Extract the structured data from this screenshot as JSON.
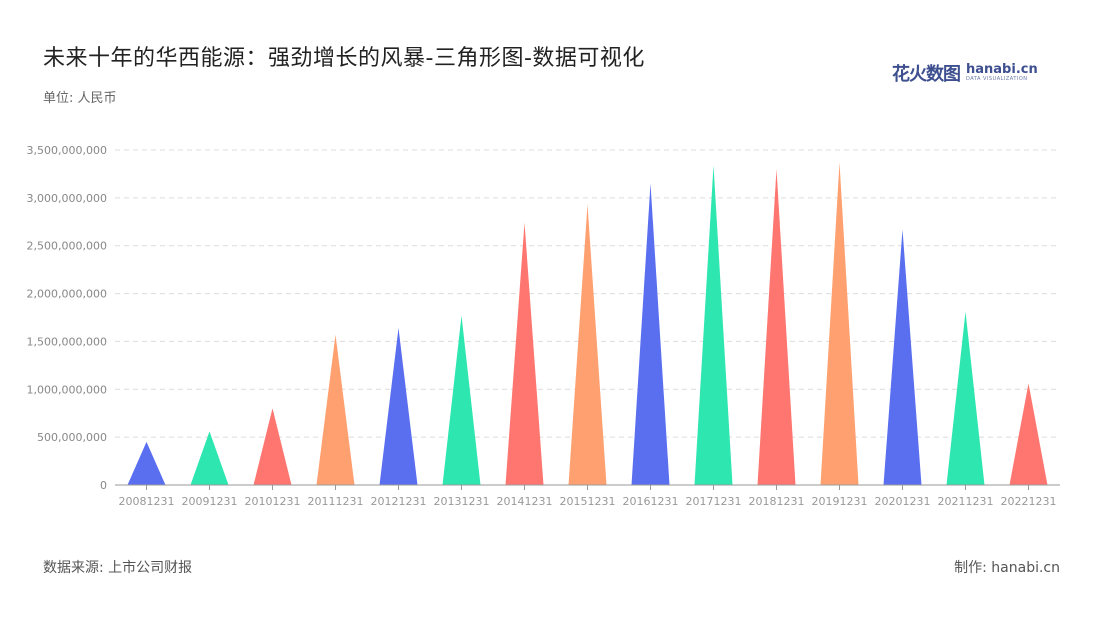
{
  "header": {
    "title": "未来十年的华西能源：强劲增长的风暴-三角形图-数据可视化",
    "unit_label": "单位: 人民币"
  },
  "logo": {
    "cn_text": "花火数图",
    "en_text": "hanabi.cn",
    "en_sub": "DATA VISUALIZATION"
  },
  "footer": {
    "source": "数据来源: 上市公司财报",
    "credit": "制作: hanabi.cn"
  },
  "chart_data": {
    "type": "bar",
    "mark_shape": "triangle",
    "categories": [
      "20081231",
      "20091231",
      "20101231",
      "20111231",
      "20121231",
      "20131231",
      "20141231",
      "20151231",
      "20161231",
      "20171231",
      "20181231",
      "20191231",
      "20201231",
      "20211231",
      "20221231"
    ],
    "values": [
      450000000,
      560000000,
      800000000,
      1570000000,
      1640000000,
      1770000000,
      2740000000,
      2930000000,
      3150000000,
      3340000000,
      3300000000,
      3370000000,
      2670000000,
      1810000000,
      1060000000
    ],
    "ylim": [
      0,
      3500000000
    ],
    "yticks": [
      0,
      500000000,
      1000000000,
      1500000000,
      2000000000,
      2500000000,
      3000000000,
      3500000000
    ],
    "ytick_labels": [
      "0",
      "500,000,000",
      "1,000,000,000",
      "1,500,000,000",
      "2,000,000,000",
      "2,500,000,000",
      "3,000,000,000",
      "3,500,000,000"
    ],
    "colors": [
      "#5a6ff0",
      "#2ee6b0",
      "#ff7670",
      "#ffa070"
    ],
    "grid": true
  }
}
